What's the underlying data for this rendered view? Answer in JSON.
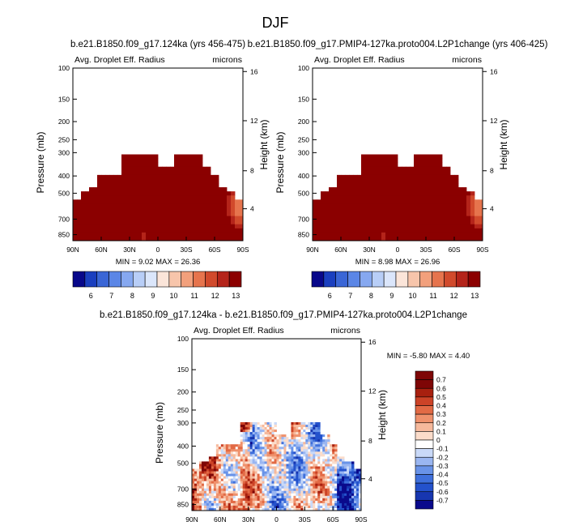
{
  "page_title": "DJF",
  "colors": {
    "dark_red": "#8b0000",
    "fill_palette": [
      "#08088a",
      "#1a3fbf",
      "#3a66d6",
      "#5b86e6",
      "#86a8f0",
      "#b8cef7",
      "#dbe6fb",
      "#fbe5d9",
      "#f7c5ab",
      "#f2a07c",
      "#e6744d",
      "#d14a2c",
      "#b4241a",
      "#8b0000"
    ],
    "diff_palette": [
      "#0a0a8c",
      "#1736b0",
      "#2452cc",
      "#3f70dc",
      "#6993e8",
      "#9ab6f1",
      "#c9d9f8",
      "#ffffff",
      "#fbdcca",
      "#f6b99c",
      "#ef916c",
      "#e26a45",
      "#cc4327",
      "#a8200f",
      "#7e0606"
    ]
  },
  "chart_data": [
    {
      "type": "heatmap",
      "name": "panel-1",
      "title": "b.e21.B1850.f09_g17.124ka (yrs 456-475)",
      "subtitle_left": "Avg. Droplet Eff. Radius",
      "subtitle_right": "microns",
      "xlabel": "",
      "ylabel": "Pressure (mb)",
      "ylabel_right": "Height (km)",
      "x_ticks": [
        "90N",
        "60N",
        "30N",
        "0",
        "30S",
        "60S",
        "90S"
      ],
      "y_ticks": [
        "100",
        "150",
        "200",
        "250",
        "300",
        "400",
        "500",
        "700",
        "850"
      ],
      "y_right_ticks": [
        "16",
        "12",
        "8",
        "4"
      ],
      "stats": {
        "min_label": "MIN =",
        "min": "9.02",
        "max_label": "MAX =",
        "max": "26.36"
      },
      "colorbar_labels": [
        "6",
        "7",
        "8",
        "9",
        "10",
        "11",
        "12",
        "13"
      ],
      "colorbar_orientation": "horizontal"
    },
    {
      "type": "heatmap",
      "name": "panel-2",
      "title": "b.e21.B1850.f09_g17.PMIP4-127ka.proto004.L2P1change (yrs 406-425)",
      "subtitle_left": "Avg. Droplet Eff. Radius",
      "subtitle_right": "microns",
      "xlabel": "",
      "ylabel": "Pressure (mb)",
      "ylabel_right": "Height (km)",
      "x_ticks": [
        "90N",
        "60N",
        "30N",
        "0",
        "30S",
        "60S",
        "90S"
      ],
      "y_ticks": [
        "100",
        "150",
        "200",
        "250",
        "300",
        "400",
        "500",
        "700",
        "850"
      ],
      "y_right_ticks": [
        "16",
        "12",
        "8",
        "4"
      ],
      "stats": {
        "min_label": "MIN =",
        "min": "8.98",
        "max_label": "MAX =",
        "max": "26.96"
      },
      "colorbar_labels": [
        "6",
        "7",
        "8",
        "9",
        "10",
        "11",
        "12",
        "13"
      ],
      "colorbar_orientation": "horizontal"
    },
    {
      "type": "heatmap",
      "name": "panel-diff",
      "title": "b.e21.B1850.f09_g17.124ka - b.e21.B1850.f09_g17.PMIP4-127ka.proto004.L2P1change",
      "subtitle_left": "Avg. Droplet Eff. Radius",
      "subtitle_right": "microns",
      "xlabel": "",
      "ylabel": "Pressure (mb)",
      "ylabel_right": "Height (km)",
      "x_ticks": [
        "90N",
        "60N",
        "30N",
        "0",
        "30S",
        "60S",
        "90S"
      ],
      "y_ticks": [
        "100",
        "150",
        "200",
        "250",
        "300",
        "400",
        "500",
        "700",
        "850"
      ],
      "y_right_ticks": [
        "16",
        "12",
        "8",
        "4"
      ],
      "stats": {
        "min_label": "MIN =",
        "min": "-5.80",
        "max_label": "MAX =",
        "max": "4.40"
      },
      "colorbar_labels": [
        "0.7",
        "0.6",
        "0.5",
        "0.4",
        "0.3",
        "0.2",
        "0.1",
        "0",
        "-0.1",
        "-0.2",
        "-0.3",
        "-0.4",
        "-0.5",
        "-0.6",
        "-0.7"
      ],
      "colorbar_orientation": "vertical"
    }
  ]
}
